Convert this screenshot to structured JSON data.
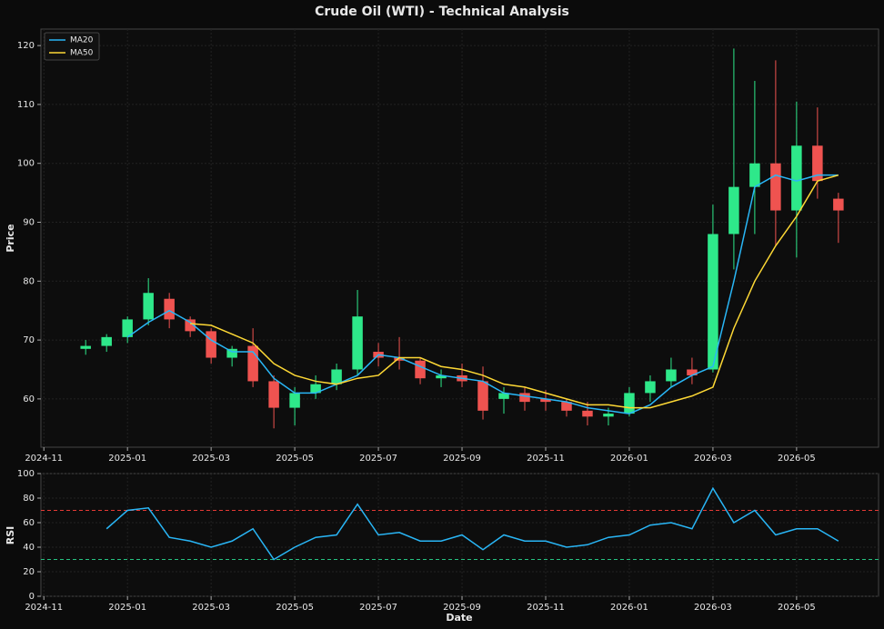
{
  "chart_data": [
    {
      "type": "candlestick",
      "title": "Crude Oil (WTI) - Technical Analysis",
      "ylabel": "Price",
      "x": [
        1.0,
        1.5,
        2.0,
        2.5,
        3.0,
        3.5,
        4.0,
        4.5,
        5.0,
        5.5,
        6.0,
        6.5,
        7.0,
        7.5,
        8.0,
        8.5,
        9.0,
        9.5,
        10.0,
        10.5,
        11.0,
        11.5,
        12.0,
        12.5,
        13.0,
        13.5,
        14.0,
        14.5,
        15.0,
        15.5,
        16.0,
        16.5,
        17.0,
        17.5,
        18.0,
        18.5,
        19.0
      ],
      "open": [
        68.5,
        69,
        70.5,
        73.5,
        77,
        73.5,
        71.5,
        67,
        69,
        63,
        58.5,
        61,
        62.5,
        65,
        68,
        67,
        66.5,
        63.5,
        64,
        63,
        60,
        61,
        60,
        59.5,
        58,
        57,
        57.5,
        61,
        63,
        65,
        65,
        88,
        96,
        100,
        92,
        103,
        94
      ],
      "high": [
        70,
        71,
        74,
        80.5,
        78,
        74,
        72,
        69,
        72,
        64,
        62,
        64,
        66,
        78.5,
        69.5,
        70.5,
        67,
        65,
        66,
        65.5,
        62,
        62,
        61.5,
        60,
        59.5,
        58.5,
        62,
        64,
        67,
        67,
        93,
        119.5,
        114,
        117.5,
        110.5,
        109.5,
        95
      ],
      "low": [
        67.5,
        68,
        69.5,
        72.5,
        72,
        70.5,
        66,
        65.5,
        62,
        55,
        55.5,
        60,
        61.5,
        64,
        65.5,
        65,
        62.5,
        62,
        62,
        56.5,
        57.5,
        58,
        58,
        57,
        55.5,
        55.5,
        57,
        59.5,
        62,
        62.5,
        64.5,
        82,
        88,
        86,
        84,
        94,
        86.5
      ],
      "close": [
        69,
        70.5,
        73.5,
        78,
        73.5,
        71.5,
        67,
        68.5,
        63,
        58.5,
        61,
        62.5,
        65,
        74,
        67,
        66.5,
        63.5,
        64,
        63,
        58,
        61,
        59.5,
        59.5,
        58,
        57,
        57.5,
        61,
        63,
        65,
        64,
        88,
        96,
        100,
        92,
        103,
        97,
        92
      ],
      "up_color": "#2ee88a",
      "down_color": "#ef5350",
      "series": [
        {
          "name": "MA20",
          "color": "#29b6f6",
          "values": [
            null,
            null,
            70.5,
            73,
            75,
            73,
            70,
            68,
            68,
            63.5,
            61,
            61,
            62.5,
            64,
            67.5,
            67,
            65.5,
            64,
            63.5,
            63,
            61,
            60.5,
            60,
            59.5,
            58.5,
            58,
            57.5,
            59,
            62,
            64,
            65.5,
            80,
            96,
            98,
            97,
            98,
            98
          ]
        },
        {
          "name": "MA50",
          "color": "#fdd835",
          "values": [
            null,
            null,
            null,
            null,
            null,
            72.8,
            72.5,
            71,
            69.5,
            66,
            64,
            63,
            62.5,
            63.5,
            64,
            67,
            67,
            65.5,
            65,
            64,
            62.5,
            62,
            61,
            60,
            59,
            59,
            58.5,
            58.5,
            59.5,
            60.5,
            62,
            72,
            80,
            86,
            91,
            97,
            98
          ]
        }
      ],
      "xlim": [
        -0.07,
        19.96
      ],
      "xticks": [
        {
          "value": 0,
          "label": "2024-11"
        },
        {
          "value": 2,
          "label": "2025-01"
        },
        {
          "value": 4,
          "label": "2025-03"
        },
        {
          "value": 6,
          "label": "2025-05"
        },
        {
          "value": 8,
          "label": "2025-07"
        },
        {
          "value": 10,
          "label": "2025-09"
        },
        {
          "value": 12,
          "label": "2025-11"
        },
        {
          "value": 14,
          "label": "2026-01"
        },
        {
          "value": 16,
          "label": "2026-03"
        },
        {
          "value": 18,
          "label": "2026-05"
        }
      ],
      "ylim": [
        51.8,
        122.8
      ],
      "yticks": [
        60,
        70,
        80,
        90,
        100,
        110,
        120
      ],
      "grid": true,
      "legend": "upper left"
    },
    {
      "type": "line",
      "ylabel": "RSI",
      "xlabel": "Date",
      "x": [
        1.0,
        1.5,
        2.0,
        2.5,
        3.0,
        3.5,
        4.0,
        4.5,
        5.0,
        5.5,
        6.0,
        6.5,
        7.0,
        7.5,
        8.0,
        8.5,
        9.0,
        9.5,
        10.0,
        10.5,
        11.0,
        11.5,
        12.0,
        12.5,
        13.0,
        13.5,
        14.0,
        14.5,
        15.0,
        15.5,
        16.0,
        16.5,
        17.0,
        17.5,
        18.0,
        18.5,
        19.0
      ],
      "series": [
        {
          "name": "RSI",
          "color": "#29b6f6",
          "values": [
            null,
            55,
            70,
            72,
            48,
            45,
            40,
            45,
            55,
            30,
            40,
            48,
            50,
            75,
            50,
            52,
            45,
            45,
            50,
            38,
            50,
            45,
            45,
            40,
            42,
            48,
            50,
            58,
            60,
            55,
            88,
            60,
            70,
            50,
            55,
            55,
            45
          ]
        }
      ],
      "hlines": [
        {
          "value": 70,
          "color": "#e53935"
        },
        {
          "value": 30,
          "color": "#26c281"
        }
      ],
      "xlim": [
        -0.07,
        19.96
      ],
      "xticks": [
        {
          "value": 0,
          "label": "2024-11"
        },
        {
          "value": 2,
          "label": "2025-01"
        },
        {
          "value": 4,
          "label": "2025-03"
        },
        {
          "value": 6,
          "label": "2025-05"
        },
        {
          "value": 8,
          "label": "2025-07"
        },
        {
          "value": 10,
          "label": "2025-09"
        },
        {
          "value": 12,
          "label": "2025-11"
        },
        {
          "value": 14,
          "label": "2026-01"
        },
        {
          "value": 16,
          "label": "2026-03"
        },
        {
          "value": 18,
          "label": "2026-05"
        }
      ],
      "ylim": [
        0,
        100
      ],
      "yticks": [
        0,
        20,
        40,
        60,
        80,
        100
      ],
      "grid": true
    }
  ]
}
